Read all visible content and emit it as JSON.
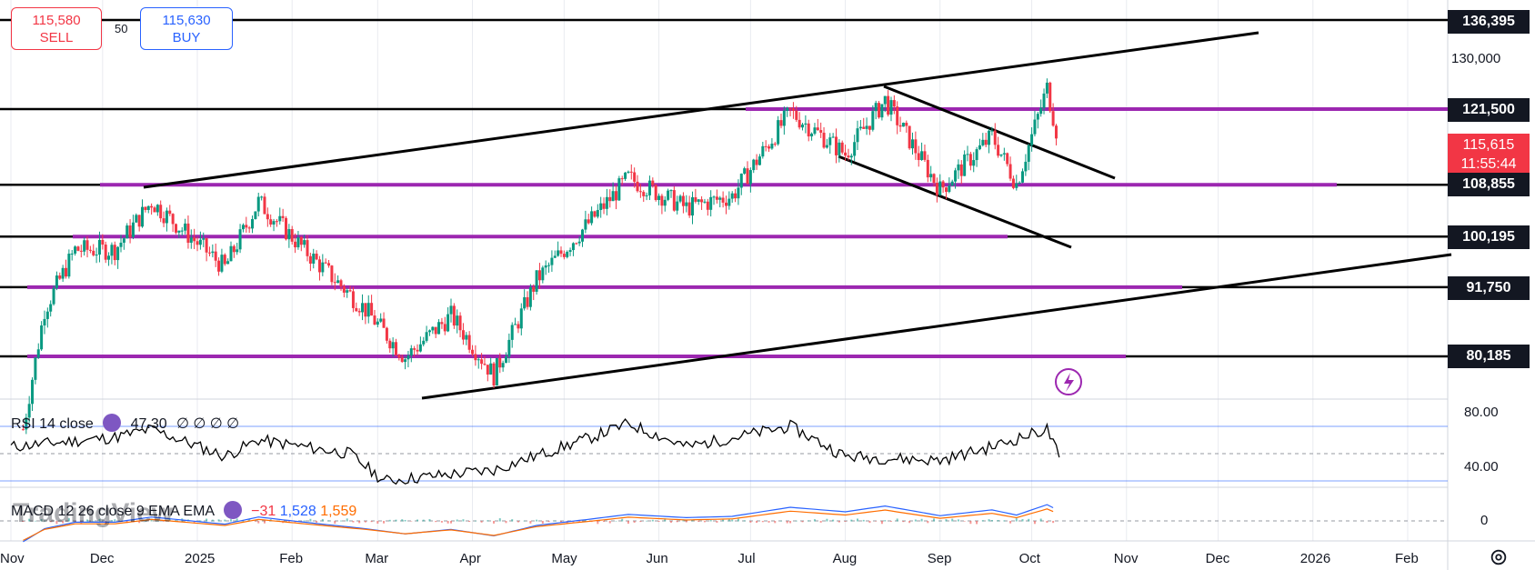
{
  "trade": {
    "sell_price": "115,580",
    "sell_label": "SELL",
    "spread": "50",
    "buy_price": "115,630",
    "buy_label": "BUY"
  },
  "price_axis": {
    "levels": [
      "136,395",
      "121,500",
      "108,855",
      "100,195",
      "91,750",
      "80,185"
    ],
    "plain_labels": [
      "130,000"
    ],
    "current_price": "115,615",
    "countdown": "11:55:44"
  },
  "time_axis": [
    "Nov",
    "Dec",
    "2025",
    "Feb",
    "Mar",
    "Apr",
    "May",
    "Jun",
    "Jul",
    "Aug",
    "Sep",
    "Oct",
    "Nov",
    "Dec",
    "2026",
    "Feb"
  ],
  "rsi": {
    "label": "RSI 14 close",
    "value": "47.30",
    "placeholders": "∅ ∅ ∅ ∅",
    "axis": [
      "80.00",
      "40.00"
    ]
  },
  "macd": {
    "label": "MACD 12 26 close 9 EMA EMA",
    "histogram": "−31",
    "macd_value": "1,528",
    "signal_value": "1,559",
    "axis": [
      "0"
    ]
  },
  "watermark": "TradingView",
  "colors": {
    "support_line": "#9c27b0",
    "sell": "#f23645",
    "buy": "#2962ff",
    "up_candle": "#089981",
    "down_candle": "#f23645",
    "macd_line": "#2962ff",
    "signal_line": "#ff6d00"
  },
  "chart_data": {
    "type": "candlestick",
    "title": "",
    "x_range": [
      "2024-11-01",
      "2026-02-28"
    ],
    "y_range": [
      76000,
      140000
    ],
    "horizontal_levels": [
      136395,
      121500,
      108855,
      100195,
      91750,
      80185
    ],
    "price_series": [
      {
        "date": "2024-11-05",
        "close": 68000
      },
      {
        "date": "2024-11-12",
        "close": 88000
      },
      {
        "date": "2024-11-22",
        "close": 98000
      },
      {
        "date": "2024-12-05",
        "close": 98000
      },
      {
        "date": "2024-12-17",
        "close": 106000
      },
      {
        "date": "2025-01-10",
        "close": 95000
      },
      {
        "date": "2025-01-21",
        "close": 106000
      },
      {
        "date": "2025-02-05",
        "close": 98000
      },
      {
        "date": "2025-02-25",
        "close": 88000
      },
      {
        "date": "2025-03-10",
        "close": 80000
      },
      {
        "date": "2025-03-25",
        "close": 87000
      },
      {
        "date": "2025-04-08",
        "close": 77000
      },
      {
        "date": "2025-04-22",
        "close": 93000
      },
      {
        "date": "2025-05-10",
        "close": 103000
      },
      {
        "date": "2025-05-22",
        "close": 110000
      },
      {
        "date": "2025-06-10",
        "close": 105000
      },
      {
        "date": "2025-06-25",
        "close": 107000
      },
      {
        "date": "2025-07-14",
        "close": 121000
      },
      {
        "date": "2025-08-01",
        "close": 114000
      },
      {
        "date": "2025-08-14",
        "close": 123000
      },
      {
        "date": "2025-09-01",
        "close": 108000
      },
      {
        "date": "2025-09-18",
        "close": 117000
      },
      {
        "date": "2025-09-26",
        "close": 109000
      },
      {
        "date": "2025-10-06",
        "close": 125000
      },
      {
        "date": "2025-10-10",
        "close": 115615
      }
    ],
    "rsi_series": [
      {
        "date": "2024-11-01",
        "value": 55
      },
      {
        "date": "2024-12-05",
        "value": 62
      },
      {
        "date": "2024-12-17",
        "value": 68
      },
      {
        "date": "2025-01-10",
        "value": 48
      },
      {
        "date": "2025-01-21",
        "value": 60
      },
      {
        "date": "2025-02-20",
        "value": 50
      },
      {
        "date": "2025-03-03",
        "value": 30
      },
      {
        "date": "2025-04-08",
        "value": 38
      },
      {
        "date": "2025-05-10",
        "value": 62
      },
      {
        "date": "2025-05-22",
        "value": 72
      },
      {
        "date": "2025-06-10",
        "value": 55
      },
      {
        "date": "2025-07-14",
        "value": 70
      },
      {
        "date": "2025-08-01",
        "value": 48
      },
      {
        "date": "2025-09-01",
        "value": 45
      },
      {
        "date": "2025-09-18",
        "value": 55
      },
      {
        "date": "2025-10-06",
        "value": 68
      },
      {
        "date": "2025-10-10",
        "value": 47.3
      }
    ]
  }
}
